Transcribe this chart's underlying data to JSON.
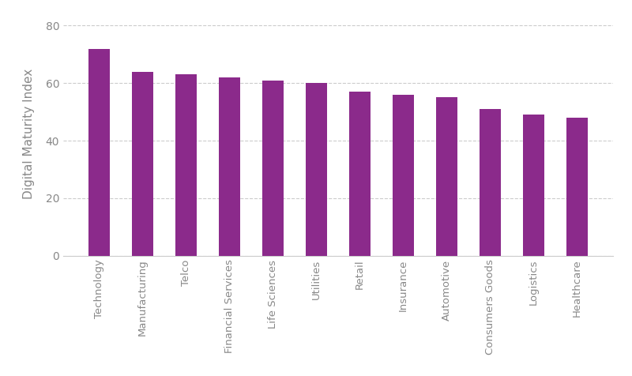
{
  "categories": [
    "Technology",
    "Manufacturing",
    "Telco",
    "Financial Services",
    "Life Sciences",
    "Utilities",
    "Retail",
    "Insurance",
    "Automotive",
    "Consumers Goods",
    "Logistics",
    "Healthcare"
  ],
  "values": [
    72,
    64,
    63,
    62,
    61,
    60,
    57,
    56,
    55,
    51,
    49,
    48
  ],
  "bar_color": "#8B2A8B",
  "ylabel": "Digital Maturity Index",
  "ylim": [
    0,
    85
  ],
  "yticks": [
    0,
    20,
    40,
    60,
    80
  ],
  "background_color": "#ffffff",
  "grid_color": "#cccccc",
  "grid_linestyle": "--",
  "bar_width": 0.5,
  "xlabel_rotation": 90,
  "xlabel_fontsize": 9.5,
  "ylabel_fontsize": 11,
  "ytick_fontsize": 10,
  "label_color": "#888888"
}
